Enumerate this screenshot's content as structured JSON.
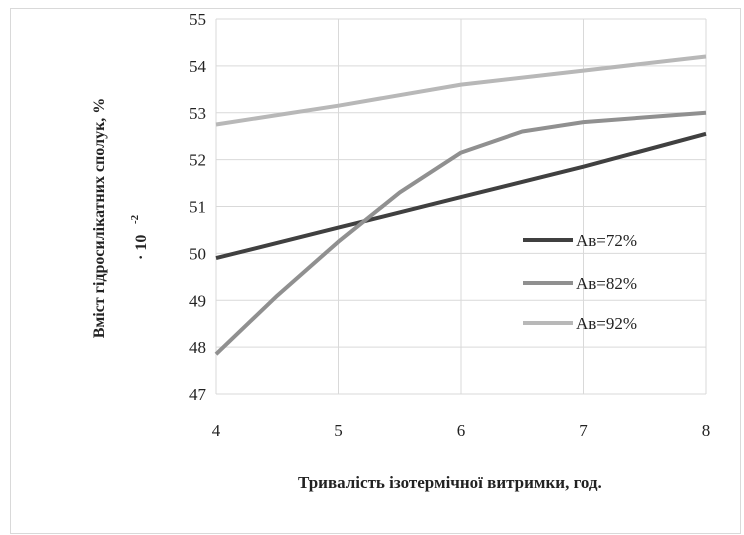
{
  "chart_data": {
    "type": "line",
    "xlabel": "Тривалість ізотермічної витримки, год.",
    "ylabel_line1": "Вміст гідросилікатних сполук, %",
    "ylabel_line2": "· 10",
    "ylabel_exponent": "-2",
    "x": [
      4,
      5,
      6,
      7,
      8
    ],
    "xlim": [
      4,
      8
    ],
    "ylim": [
      47,
      55
    ],
    "yticks": [
      47,
      48,
      49,
      50,
      51,
      52,
      53,
      54,
      55
    ],
    "xticks": [
      4,
      5,
      6,
      7,
      8
    ],
    "grid": true,
    "legend_position": "right",
    "series": [
      {
        "name": "Ав=72%",
        "color": "#404040",
        "points": [
          [
            4,
            49.9
          ],
          [
            5,
            50.55
          ],
          [
            6,
            51.2
          ],
          [
            7,
            51.85
          ],
          [
            8,
            52.55
          ]
        ]
      },
      {
        "name": "Ав=82%",
        "color": "#909090",
        "points": [
          [
            4,
            47.85
          ],
          [
            4.5,
            49.1
          ],
          [
            5,
            50.25
          ],
          [
            5.5,
            51.3
          ],
          [
            6,
            52.15
          ],
          [
            6.5,
            52.6
          ],
          [
            7,
            52.8
          ],
          [
            7.5,
            52.9
          ],
          [
            8,
            53.0
          ]
        ]
      },
      {
        "name": "Ав=92%",
        "color": "#b8b8b8",
        "points": [
          [
            4,
            52.75
          ],
          [
            5,
            53.15
          ],
          [
            6,
            53.6
          ],
          [
            7,
            53.9
          ],
          [
            8,
            54.2
          ]
        ]
      }
    ]
  }
}
